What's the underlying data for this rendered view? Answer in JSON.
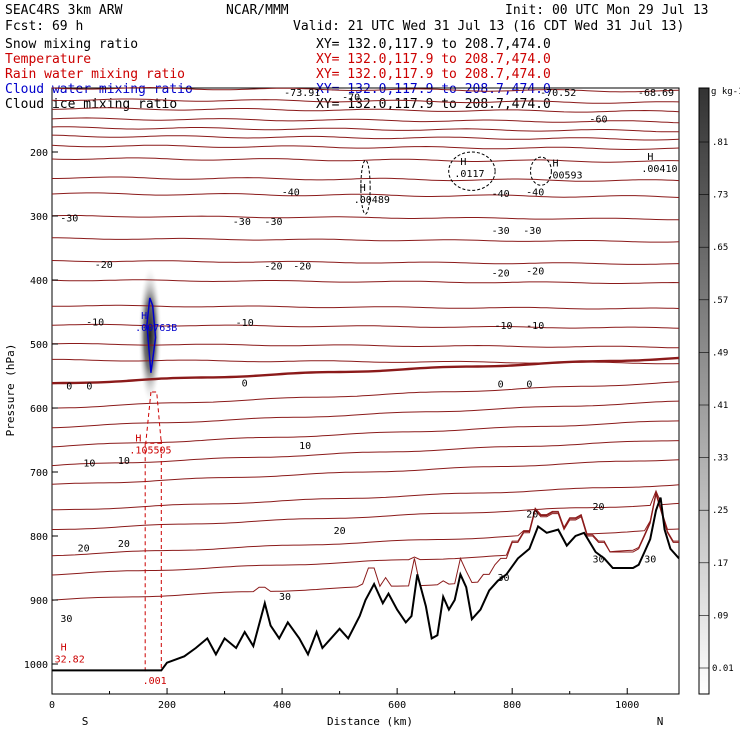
{
  "header": {
    "title": "SEAC4RS  3km ARW",
    "center": "NCAR/MMM",
    "init": "Init: 00 UTC Mon 29 Jul 13",
    "fcst": "Fcst:    69 h",
    "valid": "Valid: 21 UTC Wed 31 Jul 13 (16 CDT Wed 31 Jul 13)",
    "fields": [
      {
        "name": "Snow mixing ratio",
        "xy": "XY= 132.0,117.9 to 208.7,474.0",
        "color": "#000000"
      },
      {
        "name": "Temperature",
        "xy": "XY= 132.0,117.9 to 208.7,474.0",
        "color": "#cc0000"
      },
      {
        "name": "Rain water mixing ratio",
        "xy": "XY= 132.0,117.9 to 208.7,474.0",
        "color": "#cc0000"
      },
      {
        "name": "Cloud water mixing ratio",
        "xy": "XY= 132.0,117.9 to 208.7,474.0",
        "color": "#0000cc"
      },
      {
        "name": "Cloud ice mixing ratio",
        "xy": "XY= 132.0,117.9 to 208.7,474.0",
        "color": "#000000"
      }
    ]
  },
  "chart_data": {
    "type": "cross-section contour",
    "xlabel": "Distance (km)",
    "ylabel": "Pressure (hPa)",
    "xlim": [
      0,
      1090
    ],
    "ylim": [
      1050,
      100
    ],
    "xticks": [
      0,
      200,
      400,
      600,
      800,
      1000
    ],
    "yticks": [
      200,
      300,
      400,
      500,
      600,
      700,
      800,
      900,
      1000
    ],
    "endpoints": {
      "left": "S",
      "right": "N"
    },
    "colorbar": {
      "unit": "g kg-1",
      "levels": [
        "0.01",
        ".09",
        ".17",
        ".25",
        ".33",
        ".41",
        ".49",
        ".57",
        ".65",
        ".73",
        ".81"
      ]
    },
    "temperature_contours": {
      "color": "#8b1a1a",
      "levels": [
        -70,
        -60,
        -50,
        -40,
        -30,
        -20,
        -10,
        0,
        10,
        20,
        30
      ],
      "labels": [
        {
          "text": "-73.91",
          "x": 435,
          "p": 106
        },
        {
          "text": "-70",
          "x": 520,
          "p": 113
        },
        {
          "text": "-70.52",
          "x": 880,
          "p": 106
        },
        {
          "text": "-68.69",
          "x": 1050,
          "p": 106
        },
        {
          "text": "-60",
          "x": 950,
          "p": 148
        },
        {
          "text": "-40",
          "x": 415,
          "p": 262
        },
        {
          "text": "-40",
          "x": 780,
          "p": 264
        },
        {
          "text": "-40",
          "x": 840,
          "p": 262
        },
        {
          "text": "-30",
          "x": 30,
          "p": 302
        },
        {
          "text": "-30",
          "x": 330,
          "p": 308
        },
        {
          "text": "-30",
          "x": 385,
          "p": 308
        },
        {
          "text": "-30",
          "x": 780,
          "p": 322
        },
        {
          "text": "-30",
          "x": 835,
          "p": 322
        },
        {
          "text": "-20",
          "x": 90,
          "p": 375
        },
        {
          "text": "-20",
          "x": 385,
          "p": 377
        },
        {
          "text": "-20",
          "x": 435,
          "p": 377
        },
        {
          "text": "-20",
          "x": 780,
          "p": 388
        },
        {
          "text": "-20",
          "x": 840,
          "p": 385
        },
        {
          "text": "-10",
          "x": 75,
          "p": 465
        },
        {
          "text": "-10",
          "x": 335,
          "p": 466
        },
        {
          "text": "-10",
          "x": 785,
          "p": 470
        },
        {
          "text": "-10",
          "x": 840,
          "p": 470
        },
        {
          "text": "0",
          "x": 30,
          "p": 565
        },
        {
          "text": "0",
          "x": 65,
          "p": 565
        },
        {
          "text": "0",
          "x": 335,
          "p": 560
        },
        {
          "text": "0",
          "x": 780,
          "p": 562
        },
        {
          "text": "0",
          "x": 830,
          "p": 562
        },
        {
          "text": "10",
          "x": 65,
          "p": 685
        },
        {
          "text": "10",
          "x": 125,
          "p": 681
        },
        {
          "text": "10",
          "x": 440,
          "p": 658
        },
        {
          "text": "20",
          "x": 55,
          "p": 818
        },
        {
          "text": "20",
          "x": 125,
          "p": 811
        },
        {
          "text": "20",
          "x": 500,
          "p": 791
        },
        {
          "text": "20",
          "x": 835,
          "p": 765
        },
        {
          "text": "20",
          "x": 950,
          "p": 753
        },
        {
          "text": "30",
          "x": 25,
          "p": 928
        },
        {
          "text": "30",
          "x": 405,
          "p": 894
        },
        {
          "text": "30",
          "x": 785,
          "p": 864
        },
        {
          "text": "30",
          "x": 950,
          "p": 835
        },
        {
          "text": "30",
          "x": 1040,
          "p": 835
        }
      ]
    },
    "maxima_labels": [
      {
        "text": "H",
        "value": ".00489",
        "x": 535,
        "p": 270,
        "color": "#000000"
      },
      {
        "text": "H",
        "value": ".0117",
        "x": 710,
        "p": 230,
        "color": "#000000"
      },
      {
        "text": "H",
        "value": ".00593",
        "x": 870,
        "p": 232,
        "color": "#000000"
      },
      {
        "text": "H",
        "value": ".00410",
        "x": 1035,
        "p": 222,
        "color": "#000000"
      },
      {
        "text": "H",
        "value": ".00763B",
        "x": 155,
        "p": 470,
        "color": "#0000cc"
      },
      {
        "text": "H",
        "value": ".105505",
        "x": 145,
        "p": 662,
        "color": "#cc0000"
      },
      {
        "text": "H",
        "value": "32.82",
        "x": 15,
        "p": 988,
        "color": "#cc0000"
      },
      {
        "text": "",
        "value": ".001",
        "x": 168,
        "p": 1022,
        "color": "#cc0000"
      }
    ]
  }
}
